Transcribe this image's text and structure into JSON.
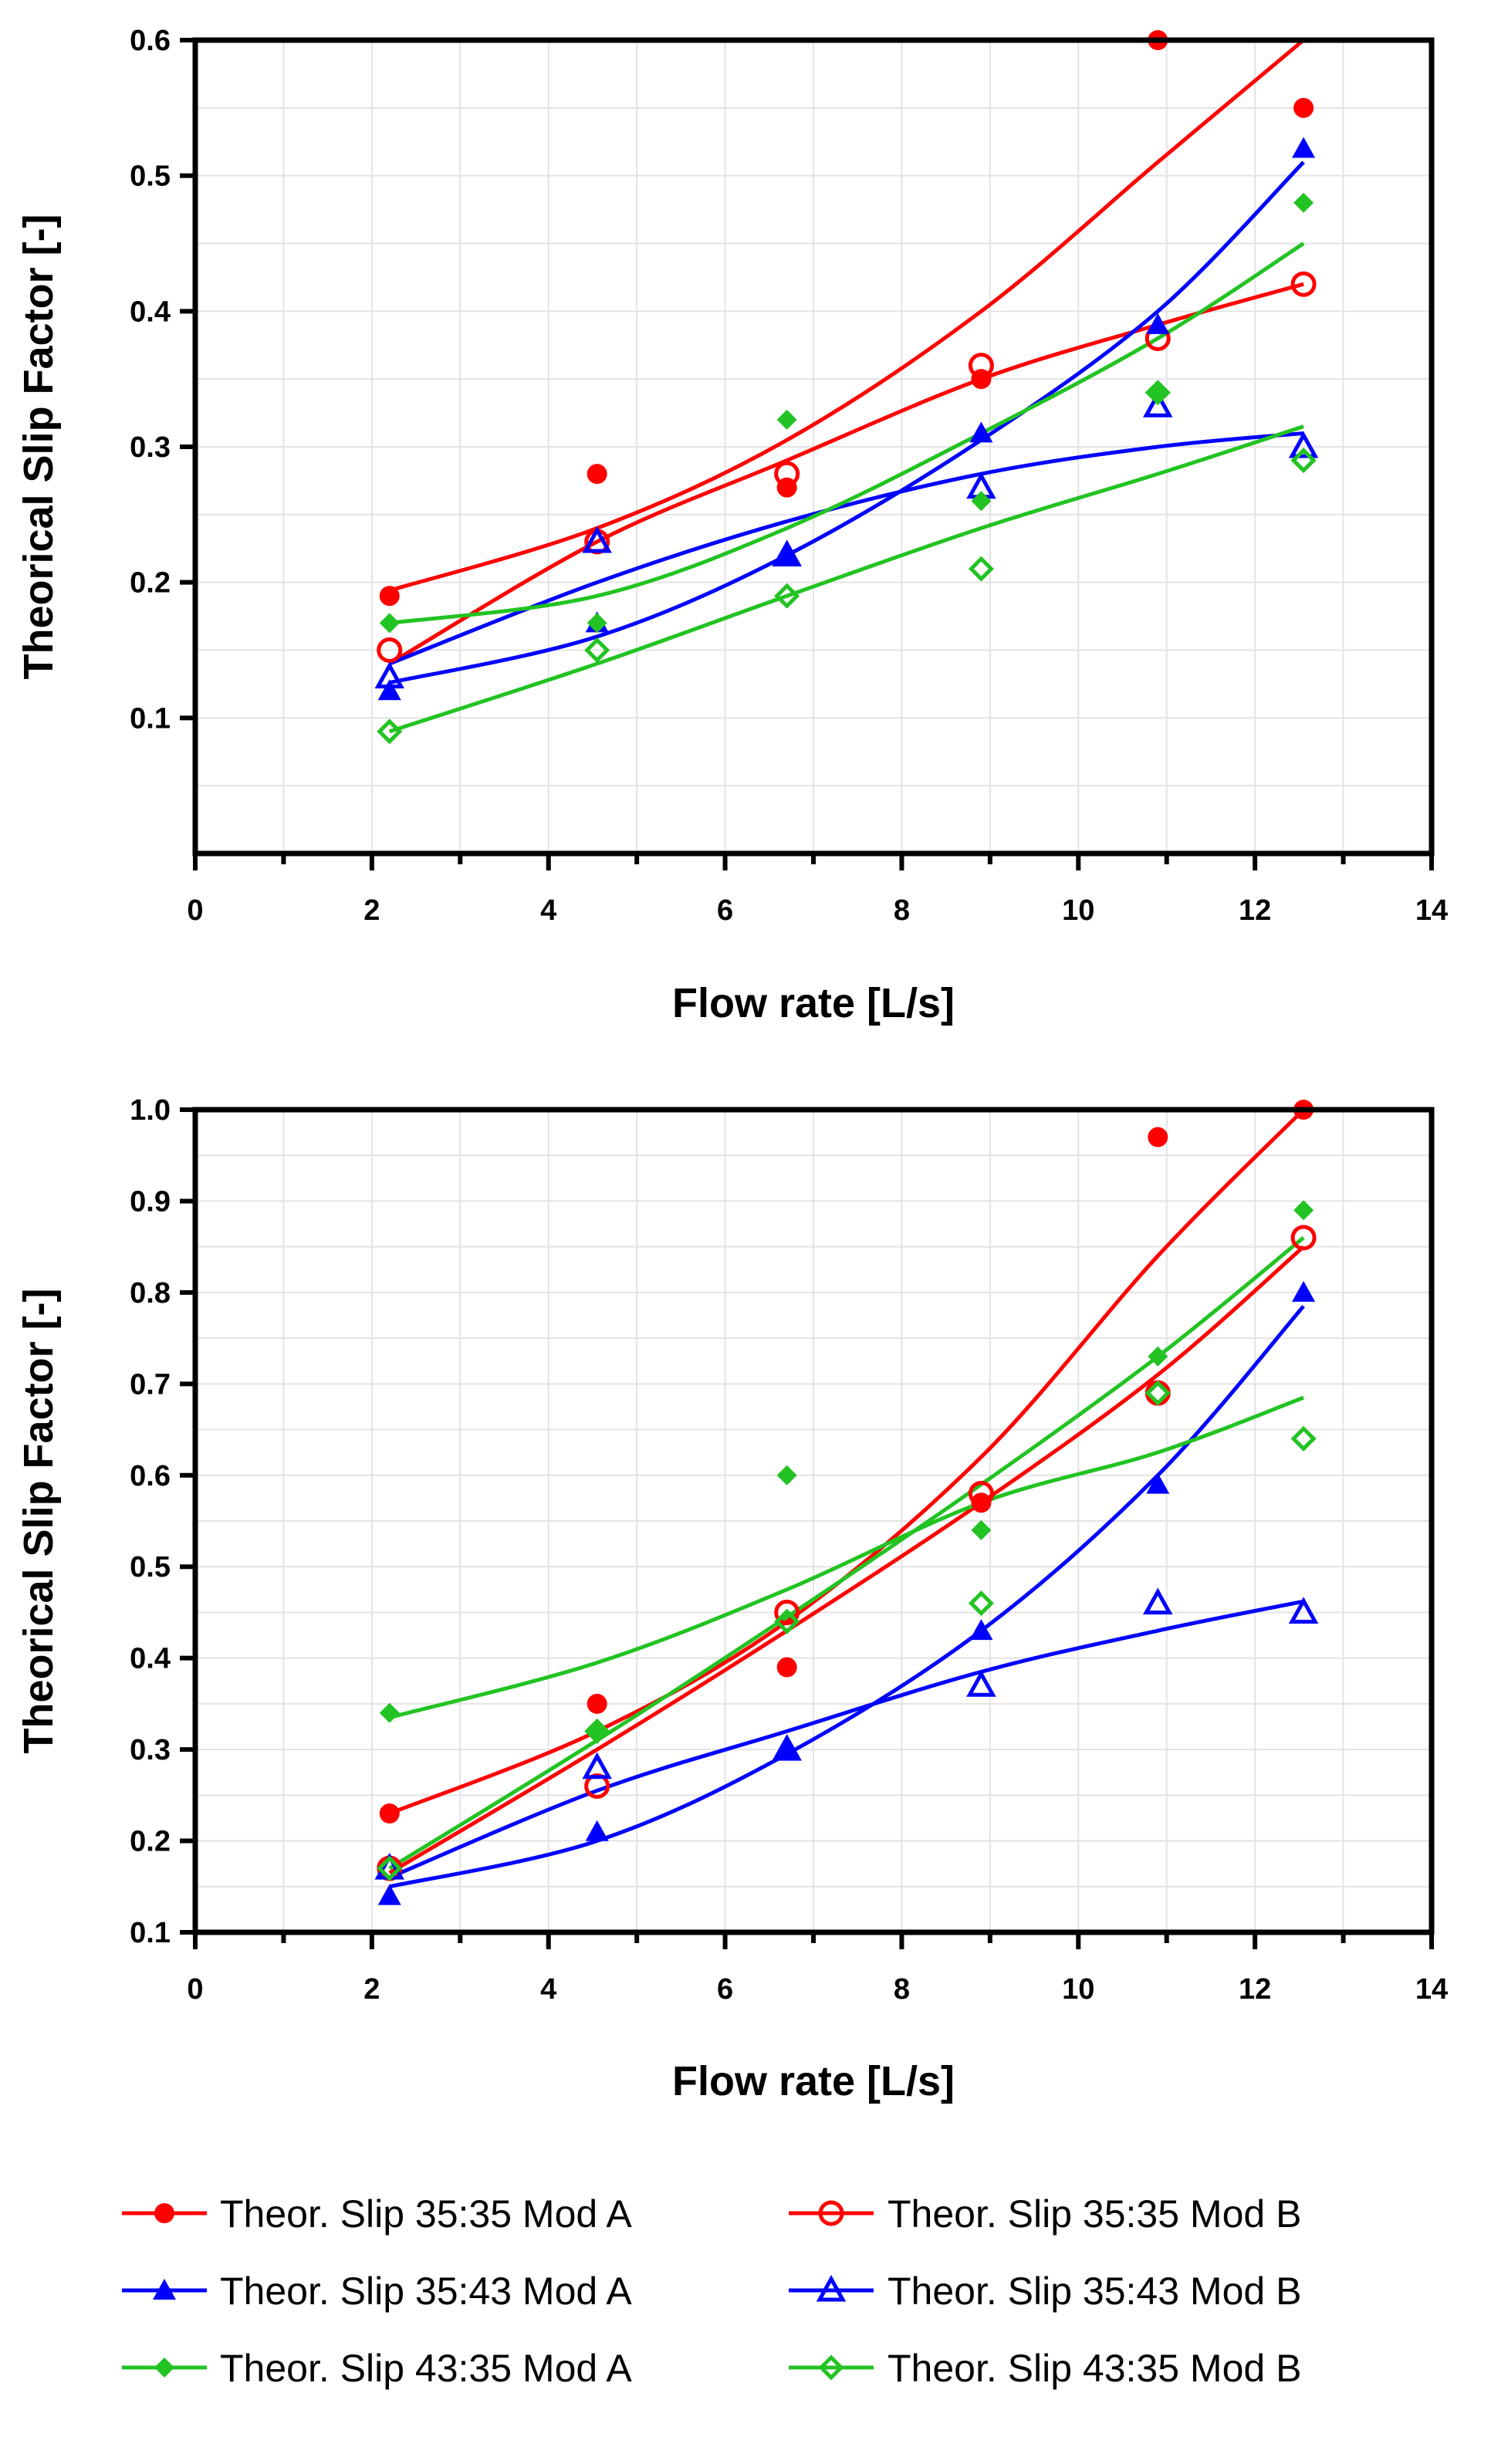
{
  "chart_data": [
    {
      "type": "scatter",
      "title": "",
      "xlabel": "Flow rate [L/s]",
      "ylabel": "Theorical Slip Factor [-]",
      "xlim": [
        0,
        14
      ],
      "ylim": [
        0,
        0.6
      ],
      "xticks": [
        "0",
        "2",
        "4",
        "6",
        "8",
        "10",
        "12",
        "14"
      ],
      "yticks": [
        "0.1",
        "0.2",
        "0.3",
        "0.4",
        "0.5",
        "0.6"
      ],
      "ytick_values": [
        0.1,
        0.2,
        0.3,
        0.4,
        0.5,
        0.6
      ],
      "grid": true,
      "x": [
        2.2,
        4.55,
        6.7,
        8.9,
        10.9,
        12.55
      ],
      "series": [
        {
          "name": "Theor. Slip 35:35 Mod A",
          "color": "#ff0000",
          "marker": "circle-filled",
          "values": [
            0.19,
            0.28,
            0.27,
            0.35,
            0.6,
            0.55
          ],
          "fit": [
            0.194,
            0.24,
            0.305,
            0.4,
            0.51,
            0.6
          ]
        },
        {
          "name": "Theor. Slip 35:35 Mod B",
          "color": "#ff0000",
          "marker": "circle-open",
          "values": [
            0.15,
            0.23,
            0.28,
            0.36,
            0.38,
            0.42
          ],
          "fit": [
            0.14,
            0.23,
            0.29,
            0.35,
            0.39,
            0.42
          ]
        },
        {
          "name": "Theor. Slip 35:43 Mod A",
          "color": "#0000ff",
          "marker": "triangle-filled",
          "values": [
            0.12,
            0.17,
            0.22,
            0.31,
            0.39,
            0.52
          ],
          "fit": [
            0.126,
            0.16,
            0.22,
            0.305,
            0.4,
            0.51
          ]
        },
        {
          "name": "Theor. Slip 35:43 Mod B",
          "color": "#0000ff",
          "marker": "triangle-open",
          "values": [
            0.13,
            0.23,
            0.22,
            0.27,
            0.33,
            0.3
          ],
          "fit": [
            0.14,
            0.2,
            0.245,
            0.28,
            0.3,
            0.31
          ]
        },
        {
          "name": "Theor. Slip 43:35 Mod A",
          "color": "#22c322",
          "marker": "diamond-filled",
          "values": [
            0.17,
            0.17,
            0.32,
            0.26,
            0.34,
            0.48
          ],
          "fit": [
            0.17,
            0.19,
            0.24,
            0.31,
            0.38,
            0.45
          ]
        },
        {
          "name": "Theor. Slip 43:35 Mod B",
          "color": "#22c322",
          "marker": "diamond-open",
          "values": [
            0.09,
            0.15,
            0.19,
            0.21,
            0.34,
            0.29
          ],
          "fit": [
            0.09,
            0.14,
            0.19,
            0.24,
            0.28,
            0.315
          ]
        }
      ]
    },
    {
      "type": "scatter",
      "title": "",
      "xlabel": "Flow rate [L/s]",
      "ylabel": "Theorical Slip Factor [-]",
      "xlim": [
        0,
        14
      ],
      "ylim": [
        0.1,
        1.0
      ],
      "xticks": [
        "0",
        "2",
        "4",
        "6",
        "8",
        "10",
        "12",
        "14"
      ],
      "yticks": [
        "0.1",
        "0.2",
        "0.3",
        "0.4",
        "0.5",
        "0.6",
        "0.7",
        "0.8",
        "0.9",
        "1.0"
      ],
      "ytick_values": [
        0.1,
        0.2,
        0.3,
        0.4,
        0.5,
        0.6,
        0.7,
        0.8,
        0.9,
        1.0
      ],
      "grid": true,
      "x": [
        2.2,
        4.55,
        6.7,
        8.9,
        10.9,
        12.55
      ],
      "series": [
        {
          "name": "Theor. Slip 35:35 Mod A",
          "color": "#ff0000",
          "marker": "circle-filled",
          "values": [
            0.23,
            0.35,
            0.39,
            0.57,
            0.97,
            1.0
          ],
          "fit": [
            0.23,
            0.32,
            0.44,
            0.62,
            0.84,
            1.0
          ]
        },
        {
          "name": "Theor. Slip 35:35 Mod B",
          "color": "#ff0000",
          "marker": "circle-open",
          "values": [
            0.17,
            0.26,
            0.45,
            0.58,
            0.69,
            0.86
          ],
          "fit": [
            0.165,
            0.3,
            0.43,
            0.57,
            0.71,
            0.85
          ]
        },
        {
          "name": "Theor. Slip 35:43 Mod A",
          "color": "#0000ff",
          "marker": "triangle-filled",
          "values": [
            0.14,
            0.21,
            0.3,
            0.43,
            0.59,
            0.8
          ],
          "fit": [
            0.15,
            0.2,
            0.295,
            0.43,
            0.6,
            0.785
          ]
        },
        {
          "name": "Theor. Slip 35:43 Mod B",
          "color": "#0000ff",
          "marker": "triangle-open",
          "values": [
            0.17,
            0.28,
            0.3,
            0.37,
            0.46,
            0.45
          ],
          "fit": [
            0.16,
            0.255,
            0.32,
            0.385,
            0.43,
            0.462
          ]
        },
        {
          "name": "Theor. Slip 43:35 Mod A",
          "color": "#22c322",
          "marker": "diamond-filled",
          "values": [
            0.34,
            0.32,
            0.6,
            0.54,
            0.73,
            0.89
          ],
          "fit": [
            0.335,
            0.395,
            0.475,
            0.57,
            0.625,
            0.685
          ]
        },
        {
          "name": "Theor. Slip 43:35 Mod B",
          "color": "#22c322",
          "marker": "diamond-open",
          "values": [
            0.17,
            0.32,
            0.44,
            0.46,
            0.69,
            0.64
          ],
          "fit": [
            0.17,
            0.31,
            0.445,
            0.59,
            0.73,
            0.86
          ]
        }
      ]
    }
  ],
  "legend": {
    "items": [
      {
        "label": "Theor. Slip 35:35 Mod A",
        "color": "#ff0000",
        "marker": "circle-filled"
      },
      {
        "label": "Theor. Slip 35:35 Mod B",
        "color": "#ff0000",
        "marker": "circle-open"
      },
      {
        "label": "Theor. Slip 35:43 Mod A",
        "color": "#0000ff",
        "marker": "triangle-filled"
      },
      {
        "label": "Theor. Slip 35:43 Mod B",
        "color": "#0000ff",
        "marker": "triangle-open"
      },
      {
        "label": "Theor. Slip 43:35 Mod A",
        "color": "#22c322",
        "marker": "diamond-filled"
      },
      {
        "label": "Theor. Slip 43:35 Mod B",
        "color": "#22c322",
        "marker": "diamond-open"
      }
    ]
  }
}
